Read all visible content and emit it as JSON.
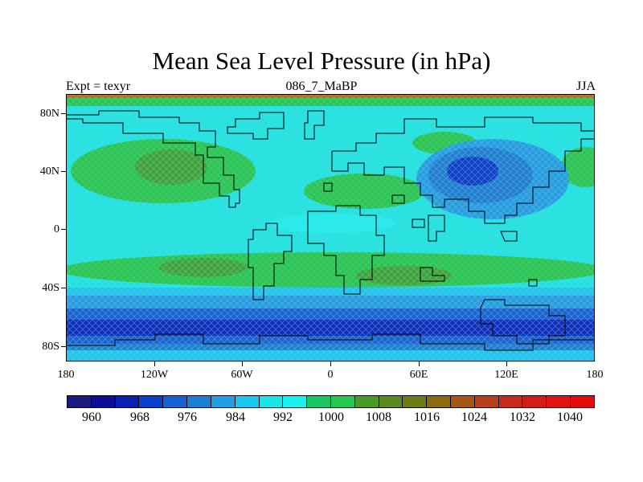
{
  "title": "Mean Sea Level Pressure (in hPa)",
  "subtitle_left": "Expt = texyr",
  "subtitle_center": "086_7_MaBP",
  "subtitle_right": "JJA",
  "lat_labels": [
    "80N",
    "40N",
    "0",
    "40S",
    "80S"
  ],
  "lon_labels": [
    "180",
    "120W",
    "60W",
    "0",
    "60E",
    "120E",
    "180"
  ],
  "colorbar": {
    "labels": [
      "960",
      "968",
      "976",
      "984",
      "992",
      "1000",
      "1008",
      "1016",
      "1024",
      "1032",
      "1040"
    ],
    "colors": [
      "#1a1a80",
      "#0d0d99",
      "#0a1fb3",
      "#0a3fcc",
      "#1462d6",
      "#1a80d6",
      "#1fa0e6",
      "#19c8f0",
      "#19e6e6",
      "#19f0f0",
      "#19c864",
      "#22c850",
      "#4a9a2a",
      "#5a8a1e",
      "#6e7a14",
      "#8c6a0e",
      "#a85414",
      "#b8401a",
      "#c82a1e",
      "#d41a1a",
      "#e01414",
      "#e60a0a"
    ]
  },
  "map_colors": {
    "ocean_base": "#19e6e6",
    "high_pressure": "#22c850",
    "low_pressure": "#1a7ad6",
    "deep_low": "#0a2fc0",
    "very_deep_low": "#0a1f9a",
    "top_band": "#8c6a0e"
  }
}
